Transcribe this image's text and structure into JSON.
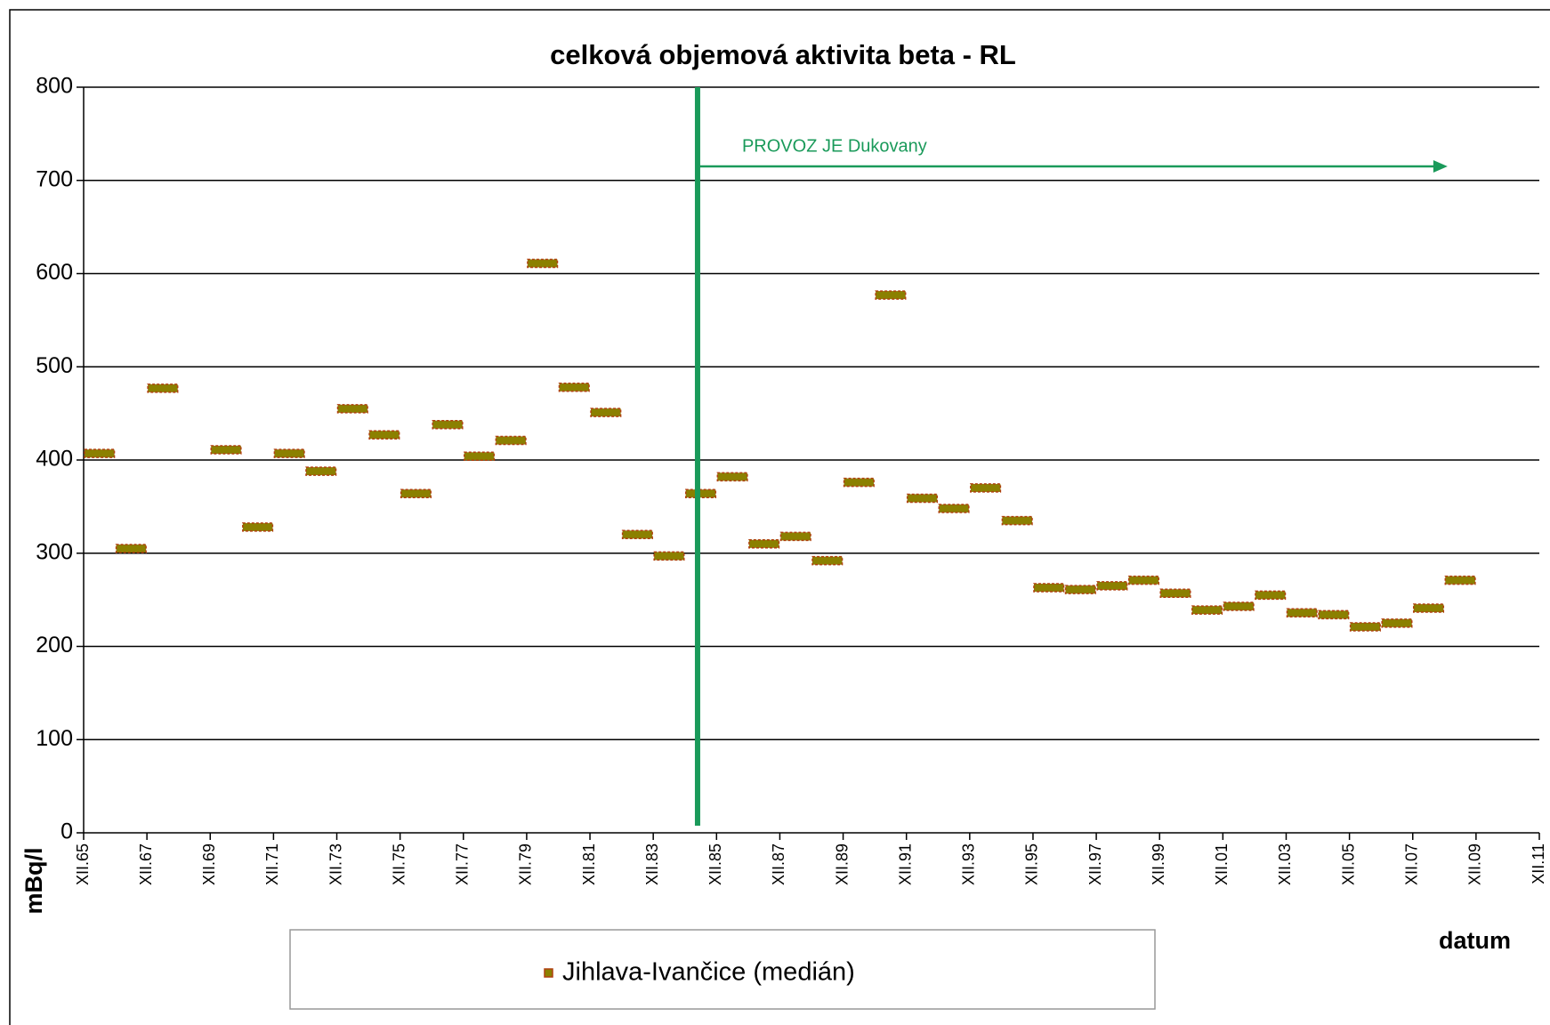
{
  "chart_data": {
    "type": "scatter",
    "title": "celková objemová aktivita beta - RL",
    "xlabel": "datum",
    "ylabel": "mBq/l",
    "x": [
      1965,
      1966,
      1967,
      1968,
      1969,
      1970,
      1971,
      1972,
      1973,
      1974,
      1975,
      1976,
      1977,
      1978,
      1979,
      1980,
      1981,
      1982,
      1983,
      1984,
      1985,
      1986,
      1987,
      1988,
      1989,
      1990,
      1991,
      1992,
      1993,
      1994,
      1995,
      1996,
      1997,
      1998,
      1999,
      2000,
      2001,
      2002,
      2003,
      2004,
      2005,
      2006,
      2007,
      2008
    ],
    "series": [
      {
        "name": "Jihlava-Ivančice (medián)",
        "color": "#8b8000",
        "values": [
          407,
          305,
          477,
          null,
          411,
          328,
          407,
          388,
          455,
          427,
          364,
          438,
          404,
          421,
          611,
          478,
          451,
          320,
          297,
          364,
          382,
          310,
          318,
          292,
          376,
          577,
          359,
          348,
          370,
          335,
          263,
          261,
          265,
          271,
          257,
          239,
          243,
          255,
          236,
          234,
          221,
          225,
          241,
          271
        ]
      }
    ],
    "xlim": [
      1965,
      2011
    ],
    "xticks": [
      {
        "value": 1965,
        "label": "XII.65"
      },
      {
        "value": 1967,
        "label": "XII.67"
      },
      {
        "value": 1969,
        "label": "XII.69"
      },
      {
        "value": 1971,
        "label": "XII.71"
      },
      {
        "value": 1973,
        "label": "XII.73"
      },
      {
        "value": 1975,
        "label": "XII.75"
      },
      {
        "value": 1977,
        "label": "XII.77"
      },
      {
        "value": 1979,
        "label": "XII.79"
      },
      {
        "value": 1981,
        "label": "XII.81"
      },
      {
        "value": 1983,
        "label": "XII.83"
      },
      {
        "value": 1985,
        "label": "XII.85"
      },
      {
        "value": 1987,
        "label": "XII.87"
      },
      {
        "value": 1989,
        "label": "XII.89"
      },
      {
        "value": 1991,
        "label": "XII.91"
      },
      {
        "value": 1993,
        "label": "XII.93"
      },
      {
        "value": 1995,
        "label": "XII.95"
      },
      {
        "value": 1997,
        "label": "XII.97"
      },
      {
        "value": 1999,
        "label": "XII.99"
      },
      {
        "value": 2001,
        "label": "XII.01"
      },
      {
        "value": 2003,
        "label": "XII.03"
      },
      {
        "value": 2005,
        "label": "XII.05"
      },
      {
        "value": 2007,
        "label": "XII.07"
      },
      {
        "value": 2009,
        "label": "XII.09"
      },
      {
        "value": 2011,
        "label": "XII.11"
      }
    ],
    "ylim": [
      0,
      800
    ],
    "yticks": [
      0,
      100,
      200,
      300,
      400,
      500,
      600,
      700,
      800
    ],
    "grid": true,
    "annotation": {
      "text": "PROVOZ JE Dukovany",
      "x": 1984.4,
      "x_end": 2008.1,
      "y": 715,
      "color": "#1a9a5a"
    }
  }
}
